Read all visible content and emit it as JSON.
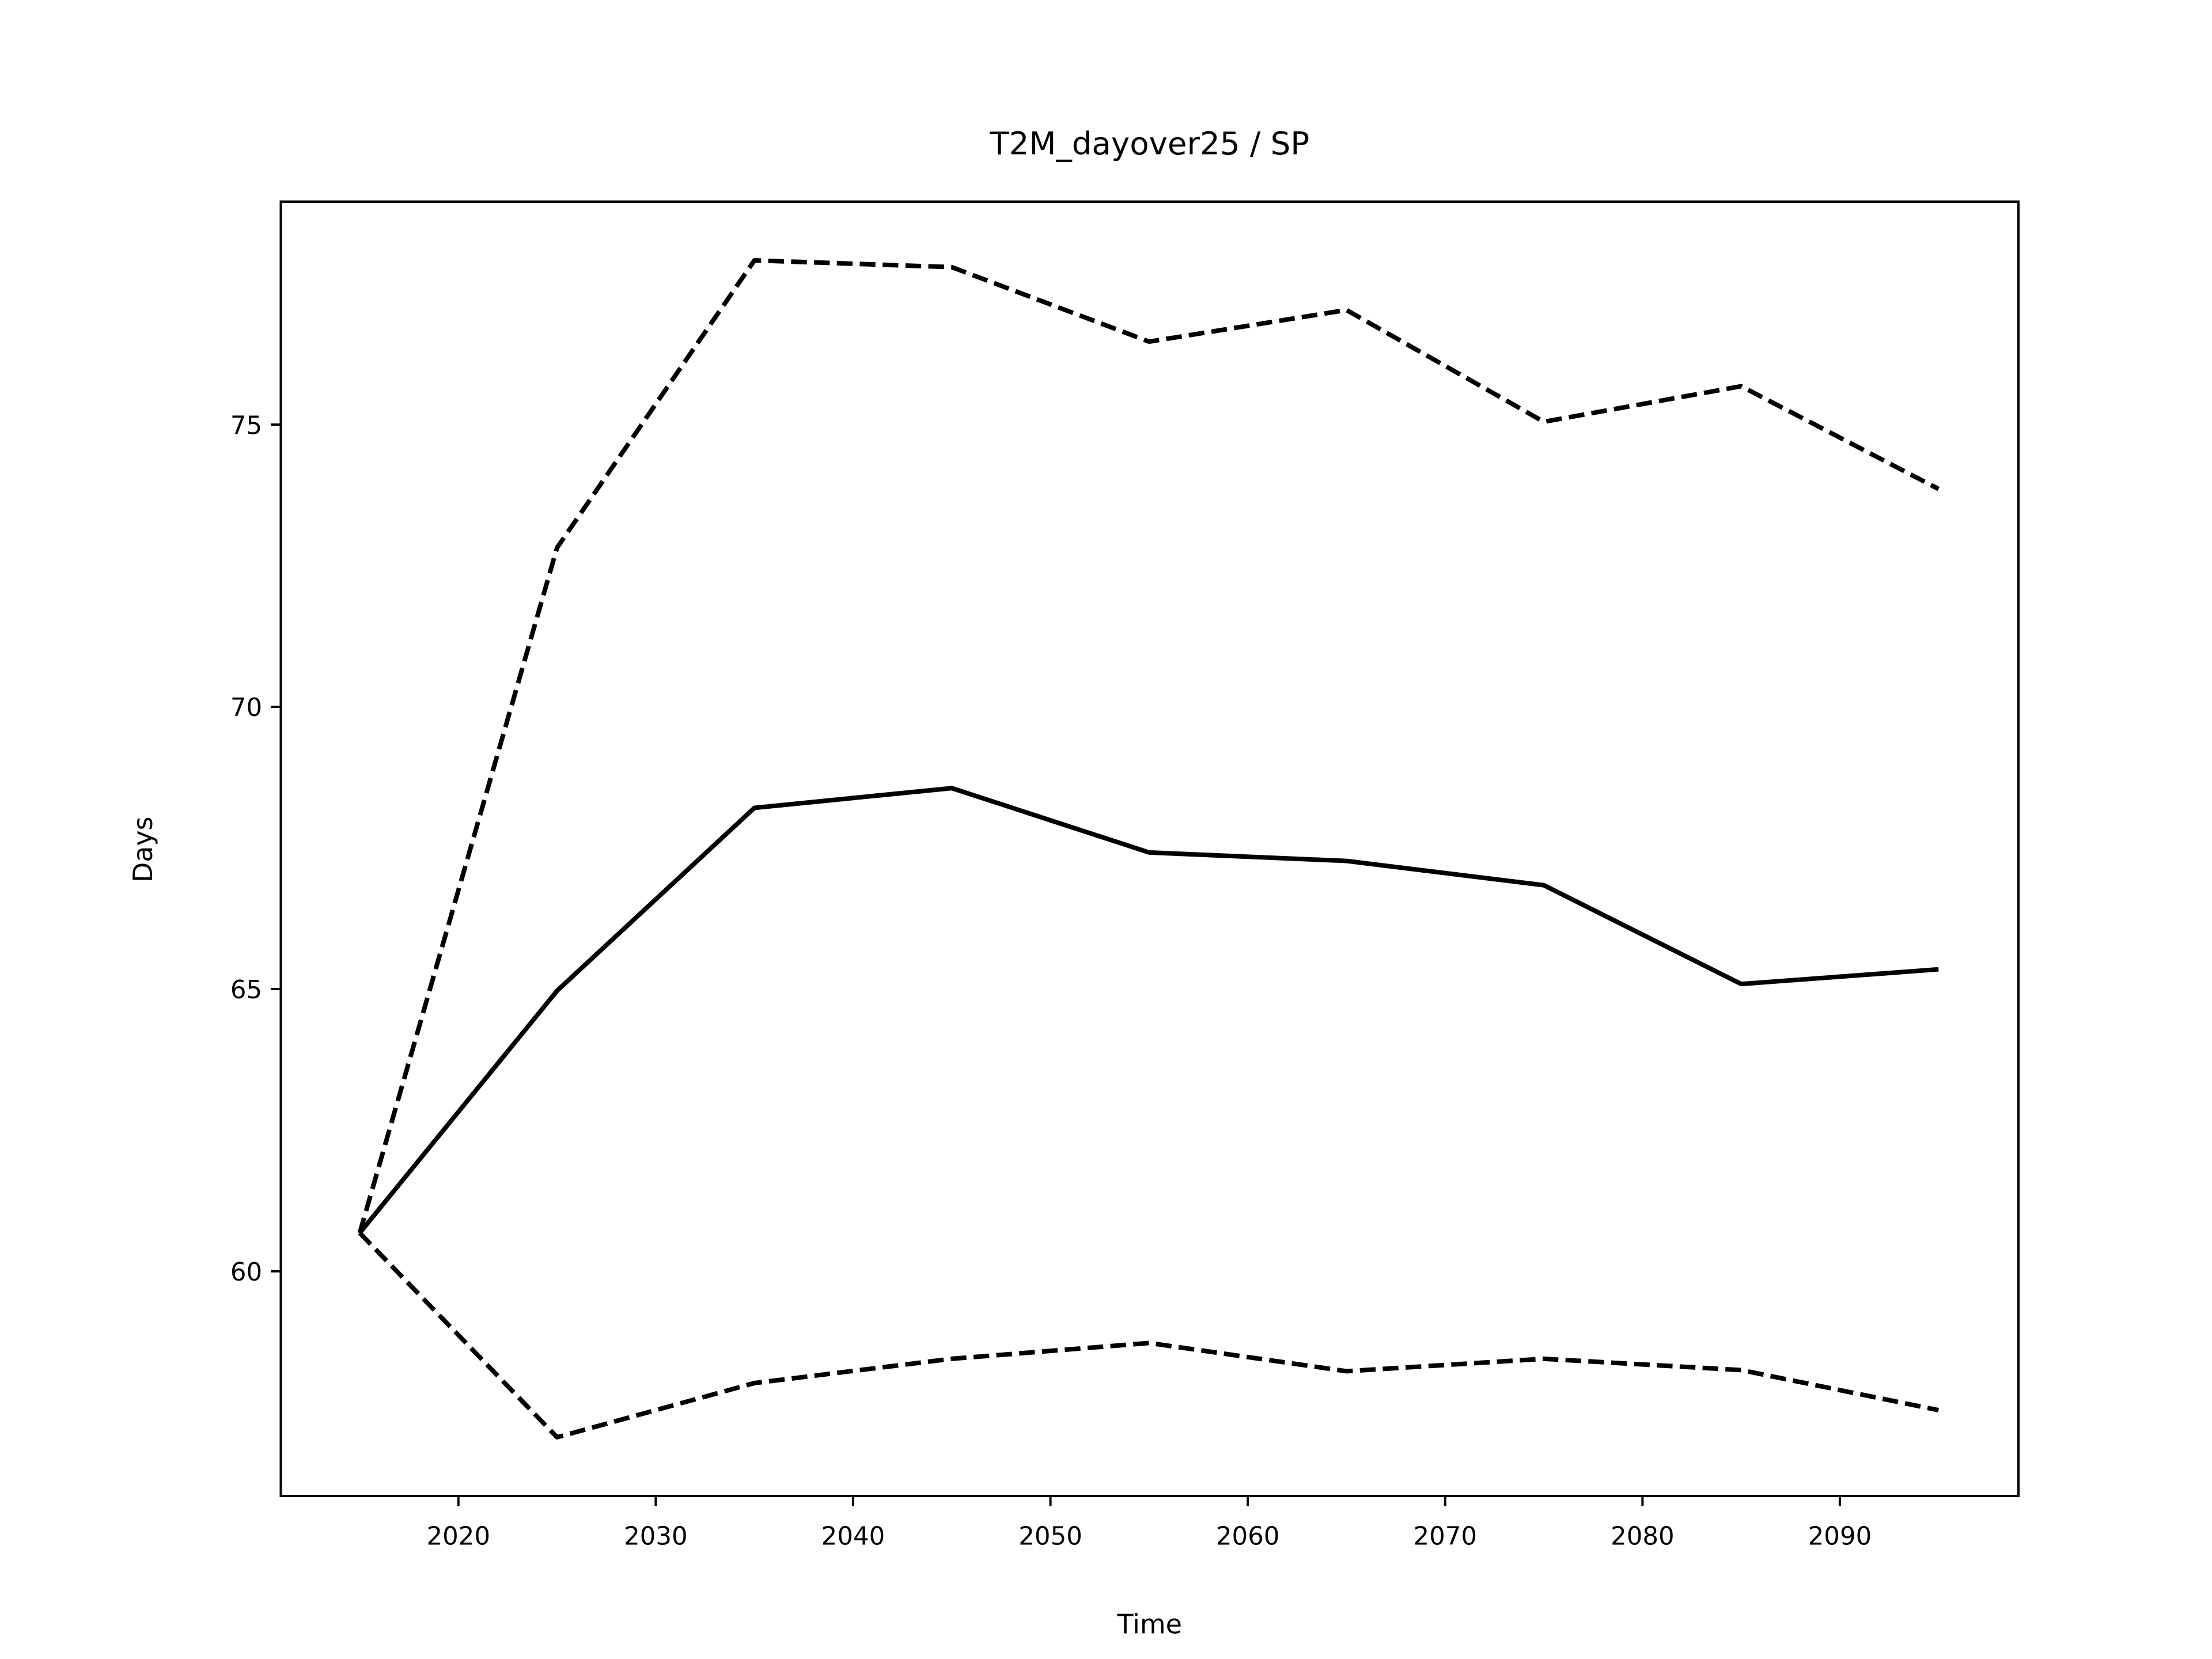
{
  "chart_data": {
    "type": "line",
    "title": "T2M_dayover25 / SP",
    "xlabel": "Time",
    "ylabel": "Days",
    "x": [
      2015,
      2025,
      2035,
      2045,
      2055,
      2065,
      2075,
      2085,
      2095
    ],
    "series": [
      {
        "color": "#000000",
        "linestyle": "solid",
        "values": [
          60.68,
          64.97,
          68.21,
          68.56,
          67.42,
          67.27,
          66.84,
          65.09,
          65.35
        ]
      },
      {
        "color": "#000000",
        "linestyle": "dashed",
        "values": [
          60.68,
          72.82,
          77.91,
          77.79,
          76.47,
          77.03,
          75.05,
          75.68,
          73.86
        ]
      },
      {
        "color": "#000000",
        "linestyle": "dashed",
        "values": [
          60.68,
          57.06,
          58.02,
          58.45,
          58.73,
          58.23,
          58.45,
          58.25,
          57.54
        ]
      }
    ],
    "xlim": [
      2011,
      2099.05
    ],
    "ylim": [
      56.02,
      78.95
    ],
    "xticks": [
      2020,
      2030,
      2040,
      2050,
      2060,
      2070,
      2080,
      2090
    ],
    "yticks": [
      60,
      65,
      70,
      75
    ],
    "grid": false
  }
}
